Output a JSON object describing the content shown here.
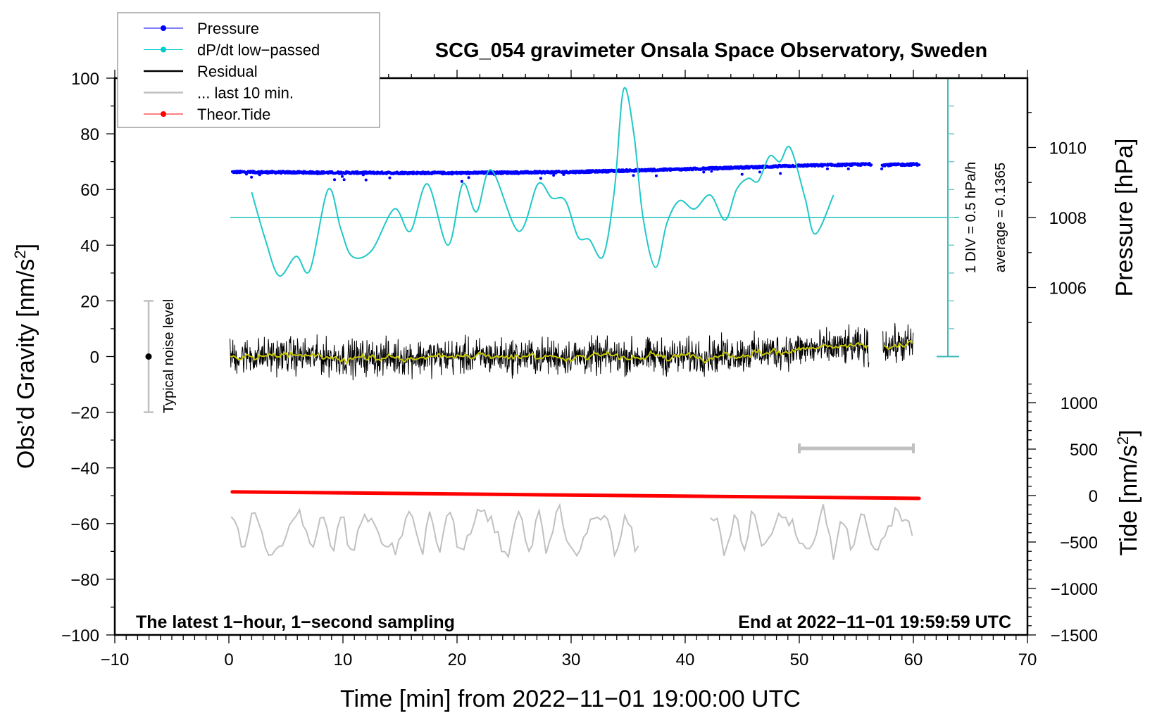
{
  "chart_data": {
    "type": "line",
    "title": "SCG_054 gravimeter Onsala Space Observatory, Sweden",
    "xlabel": "Time [min] from 2022−11−01 19:00:00 UTC",
    "ylabel_left": "Obs’d Gravity [nm/s²]",
    "ylabel_left_parts": {
      "main": "Obs’d Gravity [nm/s",
      "sup": "2",
      "end": "]"
    },
    "ylabel_right_pressure": "Pressure [hPa]",
    "ylabel_right_tide": {
      "main": "Tide [nm/s",
      "sup": "2",
      "end": "]"
    },
    "xlim": [
      -10,
      70
    ],
    "ylim_left": [
      -100,
      100
    ],
    "ylim_pressure_ticks": [
      1006,
      1008,
      1010
    ],
    "ylim_tide": [
      -1500,
      1000
    ],
    "x_ticks": [
      "−10",
      "0",
      "10",
      "20",
      "30",
      "40",
      "50",
      "60",
      "70"
    ],
    "x_tick_values": [
      -10,
      0,
      10,
      20,
      30,
      40,
      50,
      60,
      70
    ],
    "y_left_ticks": [
      "100",
      "80",
      "60",
      "40",
      "20",
      "0",
      "−20",
      "−40",
      "−60",
      "−80",
      "−100"
    ],
    "y_left_tick_values": [
      100,
      80,
      60,
      40,
      20,
      0,
      -20,
      -40,
      -60,
      -80,
      -100
    ],
    "y_pressure_ticks": [
      "1010",
      "1008",
      "1006"
    ],
    "y_pressure_tick_values": [
      1010,
      1008,
      1006
    ],
    "y_tide_ticks": [
      "1000",
      "500",
      "0",
      "−500",
      "−1000",
      "−1500"
    ],
    "y_tide_tick_values": [
      1000,
      500,
      0,
      -500,
      -1000,
      -1500
    ],
    "legend": {
      "placement": "top-left",
      "entries": [
        {
          "label": "Pressure",
          "color": "#0000ff",
          "marker": true
        },
        {
          "label": "dP/dt low−passed",
          "color": "#00cccc",
          "marker": true
        },
        {
          "label": "Residual",
          "color": "#000000",
          "marker": false
        },
        {
          "label": "... last 10 min.",
          "color": "#c0c0c0",
          "marker": false
        },
        {
          "label": "Theor.Tide",
          "color": "#ff0000",
          "marker": true
        }
      ]
    },
    "annotations": {
      "bottom_left": "The latest 1−hour, 1−second sampling",
      "bottom_right": "End at 2022−11−01 19:59:59 UTC",
      "noise_label": "Typical noise level",
      "noise_range": [
        -20,
        20
      ],
      "div_label": "1 DIV = 0.5 hPa/h",
      "average_label": "average = 0.1365",
      "last10_bar_minutes": [
        50,
        60
      ],
      "last10_bar_level": -33
    },
    "series": {
      "pressure_hPa": {
        "color": "#0000ff",
        "points": [
          [
            0.3,
            1009.3
          ],
          [
            10,
            1009.28
          ],
          [
            20,
            1009.27
          ],
          [
            30,
            1009.3
          ],
          [
            40,
            1009.38
          ],
          [
            50,
            1009.48
          ],
          [
            56.2,
            1009.52
          ],
          [
            57.3,
            1009.5
          ],
          [
            60.5,
            1009.52
          ]
        ],
        "gap": [
          56.3,
          57.2
        ]
      },
      "dpdt_lowpassed_div": {
        "color": "#20c0c0",
        "center_level": 50,
        "points": [
          [
            2.0,
            59
          ],
          [
            3.2,
            42
          ],
          [
            4.4,
            29
          ],
          [
            5.9,
            36
          ],
          [
            7.1,
            31
          ],
          [
            8.7,
            60
          ],
          [
            9.8,
            46
          ],
          [
            10.8,
            36
          ],
          [
            12.5,
            38
          ],
          [
            14.5,
            53
          ],
          [
            15.9,
            45
          ],
          [
            17.4,
            62
          ],
          [
            19.2,
            40
          ],
          [
            20.5,
            62
          ],
          [
            21.7,
            52
          ],
          [
            23.0,
            67
          ],
          [
            25.4,
            45
          ],
          [
            27.1,
            62
          ],
          [
            28.3,
            57
          ],
          [
            29.5,
            56
          ],
          [
            30.6,
            43
          ],
          [
            31.6,
            42
          ],
          [
            32.8,
            36
          ],
          [
            33.8,
            60
          ],
          [
            34.6,
            96
          ],
          [
            35.5,
            80
          ],
          [
            36.3,
            50
          ],
          [
            37.4,
            32
          ],
          [
            38.4,
            48
          ],
          [
            39.5,
            56
          ],
          [
            40.8,
            53
          ],
          [
            42.2,
            58
          ],
          [
            43.5,
            49
          ],
          [
            44.5,
            60
          ],
          [
            45.5,
            64
          ],
          [
            46.4,
            63
          ],
          [
            47.4,
            72
          ],
          [
            48.3,
            70
          ],
          [
            49.2,
            75
          ],
          [
            50.5,
            57
          ],
          [
            51.4,
            44
          ],
          [
            53.0,
            58
          ]
        ]
      },
      "residual": {
        "color": "#000000",
        "noise_amplitude": 7,
        "trend": [
          [
            0,
            0
          ],
          [
            5,
            0.5
          ],
          [
            10,
            -0.5
          ],
          [
            20,
            0
          ],
          [
            30,
            0
          ],
          [
            40,
            0
          ],
          [
            45,
            1
          ],
          [
            50,
            2.5
          ],
          [
            55,
            3.5
          ],
          [
            56,
            3
          ],
          [
            57.5,
            4
          ],
          [
            60,
            4.5
          ]
        ],
        "gap": [
          56.1,
          57.3
        ]
      },
      "residual_smoothed": {
        "color": "#c8c800"
      },
      "last_10_min": {
        "color": "#c0c0c0",
        "center": -63,
        "amplitude": 8,
        "segments": [
          [
            0,
            36
          ],
          [
            42,
            60
          ]
        ]
      },
      "theor_tide_nm_s2": {
        "color": "#ff0000",
        "points": [
          [
            0.3,
            40
          ],
          [
            60.5,
            -30
          ]
        ]
      }
    }
  }
}
